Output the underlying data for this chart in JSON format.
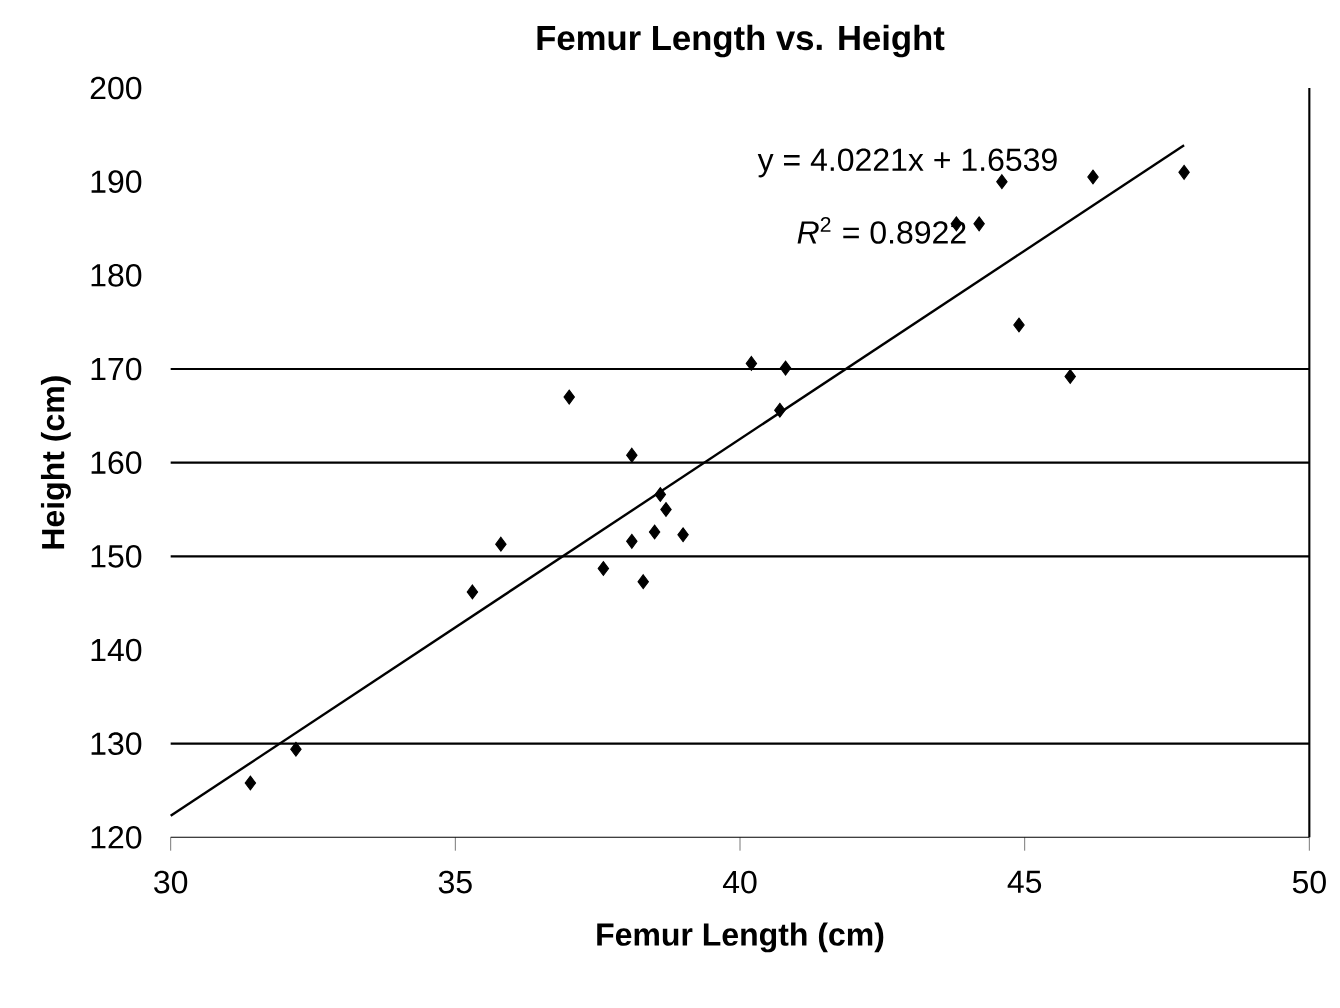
{
  "chart_data": {
    "type": "scatter",
    "title": "Femur Length vs. Height",
    "xlabel": "Femur Length (cm)",
    "ylabel": "Height (cm)",
    "xlim": [
      30,
      50
    ],
    "xticks": [
      30,
      35,
      40,
      45,
      50
    ],
    "ylim": [
      120,
      200
    ],
    "yticks": [
      120,
      130,
      140,
      150,
      160,
      170,
      180,
      190,
      200
    ],
    "marker": "diamond",
    "series": [
      {
        "color": "#000000",
        "x": [
          31.4,
          32.2,
          35.3,
          35.8,
          37.0,
          37.6,
          38.1,
          38.1,
          38.3,
          38.5,
          38.6,
          38.7,
          39.0,
          40.2,
          40.8,
          40.7,
          43.8,
          44.2,
          44.6,
          44.9,
          45.8,
          46.2,
          47.8
        ],
        "values": [
          125.8,
          129.4,
          146.2,
          151.3,
          167.0,
          148.7,
          160.8,
          151.6,
          147.3,
          152.6,
          156.6,
          155.0,
          152.3,
          170.6,
          170.1,
          165.6,
          185.5,
          185.5,
          190.0,
          174.7,
          169.2,
          190.5,
          191.0
        ]
      },
      {
        "type": "line",
        "color": "#000000",
        "marker": "none",
        "x": [
          30,
          47.8
        ],
        "values": [
          122.3,
          193.9
        ]
      }
    ],
    "ref_lines": [
      {
        "axis": "y",
        "value": 130,
        "color": "#000000"
      },
      {
        "axis": "y",
        "value": 150,
        "color": "#000000"
      },
      {
        "axis": "y",
        "value": 160,
        "color": "#000000"
      },
      {
        "axis": "y",
        "value": 170,
        "color": "#000000"
      }
    ],
    "annotations": [
      "y = 4.0221x + 1.6539",
      "*R*$^{2}$ = 0.8922"
    ]
  }
}
